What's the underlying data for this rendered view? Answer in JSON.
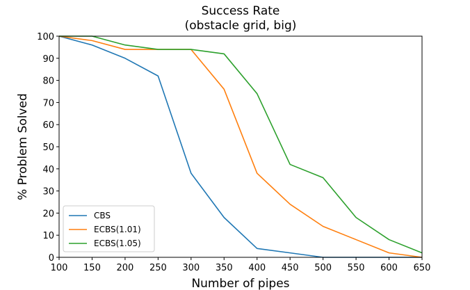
{
  "chart_data": {
    "type": "line",
    "title": "Success Rate",
    "subtitle": "(obstacle grid, big)",
    "xlabel": "Number of pipes",
    "ylabel": "% Problem Solved",
    "xlim": [
      100,
      650
    ],
    "ylim": [
      0,
      100
    ],
    "xticks": [
      100,
      150,
      200,
      250,
      300,
      350,
      400,
      450,
      500,
      550,
      600,
      650
    ],
    "yticks": [
      0,
      10,
      20,
      30,
      40,
      50,
      60,
      70,
      80,
      90,
      100
    ],
    "grid": false,
    "legend_position": "bottom-left",
    "series": [
      {
        "name": "CBS",
        "color": "#1f77b4",
        "x": [
          100,
          150,
          200,
          250,
          300,
          350,
          400,
          450,
          500,
          550,
          600,
          650
        ],
        "y": [
          100,
          96,
          90,
          82,
          38,
          18,
          4,
          2,
          0,
          0,
          0,
          0
        ]
      },
      {
        "name": "ECBS(1.01)",
        "color": "#ff7f0e",
        "x": [
          100,
          150,
          200,
          250,
          300,
          350,
          400,
          450,
          500,
          550,
          600,
          650
        ],
        "y": [
          100,
          98,
          94,
          94,
          94,
          76,
          38,
          24,
          14,
          8,
          2,
          0
        ]
      },
      {
        "name": "ECBS(1.05)",
        "color": "#2ca02c",
        "x": [
          100,
          150,
          200,
          250,
          300,
          350,
          400,
          450,
          500,
          550,
          600,
          650
        ],
        "y": [
          100,
          100,
          96,
          94,
          94,
          92,
          74,
          42,
          36,
          18,
          8,
          2
        ]
      }
    ]
  }
}
